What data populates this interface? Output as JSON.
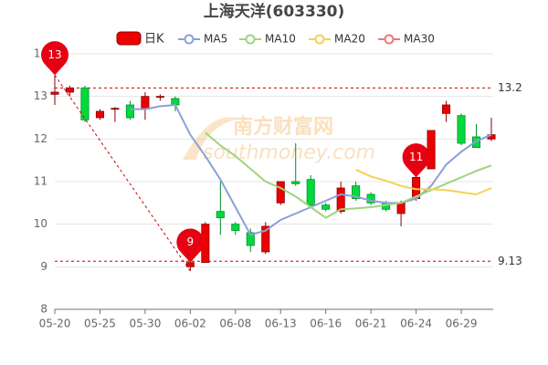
{
  "chart_data": {
    "type": "candlestick",
    "title": "上海天洋(603330)",
    "watermark": [
      "南方财富网",
      "southmoney.com"
    ],
    "categories": [
      "05-20",
      null,
      null,
      "05-25",
      null,
      null,
      "05-30",
      null,
      null,
      "06-02",
      null,
      null,
      "06-08",
      null,
      null,
      "06-13",
      null,
      null,
      "06-16",
      null,
      null,
      "06-21",
      null,
      null,
      "06-24",
      null,
      null,
      "06-29",
      null,
      null
    ],
    "candle_name": "日K",
    "up_color": "#ec0000",
    "down_color": "#00da3c",
    "open": [
      13.05,
      13.1,
      13.2,
      12.5,
      12.7,
      12.8,
      12.7,
      13.0,
      12.95,
      9.0,
      9.1,
      10.3,
      10.0,
      9.8,
      9.35,
      10.5,
      11.0,
      11.05,
      10.45,
      10.3,
      10.9,
      10.7,
      10.5,
      10.25,
      10.6,
      11.3,
      12.6,
      12.55,
      12.05,
      12.0
    ],
    "high": [
      13.5,
      13.25,
      13.25,
      12.7,
      12.75,
      12.9,
      13.1,
      13.05,
      13.0,
      9.1,
      10.05,
      11.0,
      10.05,
      9.9,
      10.05,
      11.0,
      11.9,
      11.15,
      10.5,
      11.0,
      11.0,
      10.75,
      10.55,
      10.55,
      11.1,
      12.2,
      12.9,
      12.6,
      12.35,
      12.5
    ],
    "low": [
      12.8,
      13.0,
      12.4,
      12.45,
      12.4,
      12.45,
      12.45,
      12.9,
      12.65,
      8.9,
      9.1,
      9.75,
      9.75,
      9.35,
      9.3,
      10.45,
      10.9,
      10.4,
      10.3,
      10.25,
      10.55,
      10.45,
      10.3,
      9.95,
      10.55,
      11.3,
      12.4,
      11.85,
      11.8,
      11.95
    ],
    "close": [
      13.1,
      13.2,
      12.45,
      12.65,
      12.72,
      12.5,
      13.0,
      13.0,
      12.8,
      9.1,
      10.0,
      10.15,
      9.85,
      9.5,
      9.95,
      11.0,
      10.95,
      10.45,
      10.35,
      10.85,
      10.6,
      10.5,
      10.35,
      10.5,
      11.1,
      12.2,
      12.8,
      11.9,
      11.8,
      12.1
    ],
    "series": [
      {
        "name": "MA5",
        "color": "#8aa0d8",
        "values": [
          null,
          null,
          null,
          null,
          null,
          12.7,
          12.7,
          12.77,
          12.8,
          12.1,
          11.6,
          11.05,
          10.4,
          9.75,
          9.85,
          10.1,
          10.25,
          10.4,
          10.55,
          10.7,
          10.65,
          10.55,
          10.5,
          10.5,
          10.6,
          10.9,
          11.4,
          11.7,
          11.95,
          12.1
        ]
      },
      {
        "name": "MA10",
        "color": "#9ed47f",
        "values": [
          null,
          null,
          null,
          null,
          null,
          null,
          null,
          null,
          null,
          null,
          12.15,
          11.85,
          11.6,
          11.3,
          11.0,
          10.85,
          10.65,
          10.4,
          10.15,
          10.35,
          10.37,
          10.4,
          10.45,
          10.5,
          10.65,
          10.8,
          10.95,
          11.1,
          11.25,
          11.38
        ]
      },
      {
        "name": "MA20",
        "color": "#f7d154",
        "values": [
          null,
          null,
          null,
          null,
          null,
          null,
          null,
          null,
          null,
          null,
          null,
          null,
          null,
          null,
          null,
          null,
          null,
          null,
          null,
          null,
          11.28,
          11.12,
          11.02,
          10.9,
          10.82,
          10.82,
          10.8,
          10.75,
          10.7,
          10.85
        ]
      },
      {
        "name": "MA30",
        "color": "#ee7777",
        "values": [
          null,
          null,
          null,
          null,
          null,
          null,
          null,
          null,
          null,
          null,
          null,
          null,
          null,
          null,
          null,
          null,
          null,
          null,
          null,
          null,
          null,
          null,
          null,
          null,
          null,
          null,
          null,
          null,
          null,
          null
        ]
      }
    ],
    "ylim": [
      8,
      14
    ],
    "yticks": [
      8,
      9,
      10,
      11,
      12,
      13,
      14
    ],
    "grid": true,
    "marklines": [
      {
        "value": 13.2,
        "label": "13.2"
      },
      {
        "value": 9.13,
        "label": "9.13"
      }
    ],
    "markers": [
      {
        "index": 0,
        "value": 13
      },
      {
        "index": 9,
        "value": 9
      },
      {
        "index": 24,
        "value": 11
      }
    ]
  }
}
